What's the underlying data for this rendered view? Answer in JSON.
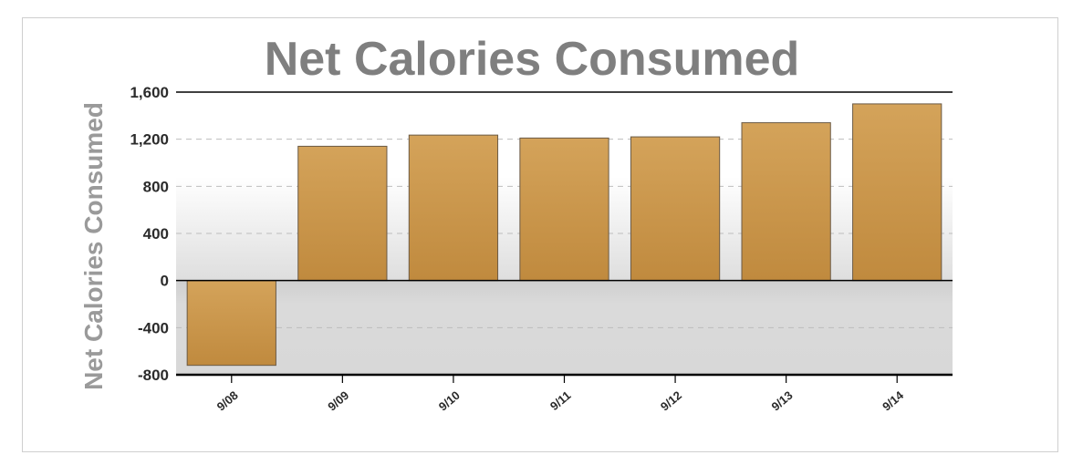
{
  "chart_data": {
    "type": "bar",
    "title": "Net Calories Consumed",
    "xlabel": "",
    "ylabel": "Net Calories Consumed",
    "categories": [
      "9/08",
      "9/09",
      "9/10",
      "9/11",
      "9/12",
      "9/13",
      "9/14"
    ],
    "values": [
      -720,
      1140,
      1235,
      1210,
      1220,
      1340,
      1500
    ],
    "ylim": [
      -800,
      1600
    ],
    "yticks": [
      1600,
      1200,
      800,
      400,
      0,
      -400,
      -800
    ],
    "ytick_labels": [
      "1,600",
      "1,200",
      "800",
      "400",
      "0",
      "-400",
      "-800"
    ],
    "grid": true,
    "colors": {
      "bar_fill_top": "#d4a35a",
      "bar_fill_bottom": "#c08a3e",
      "bar_stroke": "#6b5a45",
      "grid": "#bdbdbd",
      "axis": "#000000"
    }
  }
}
